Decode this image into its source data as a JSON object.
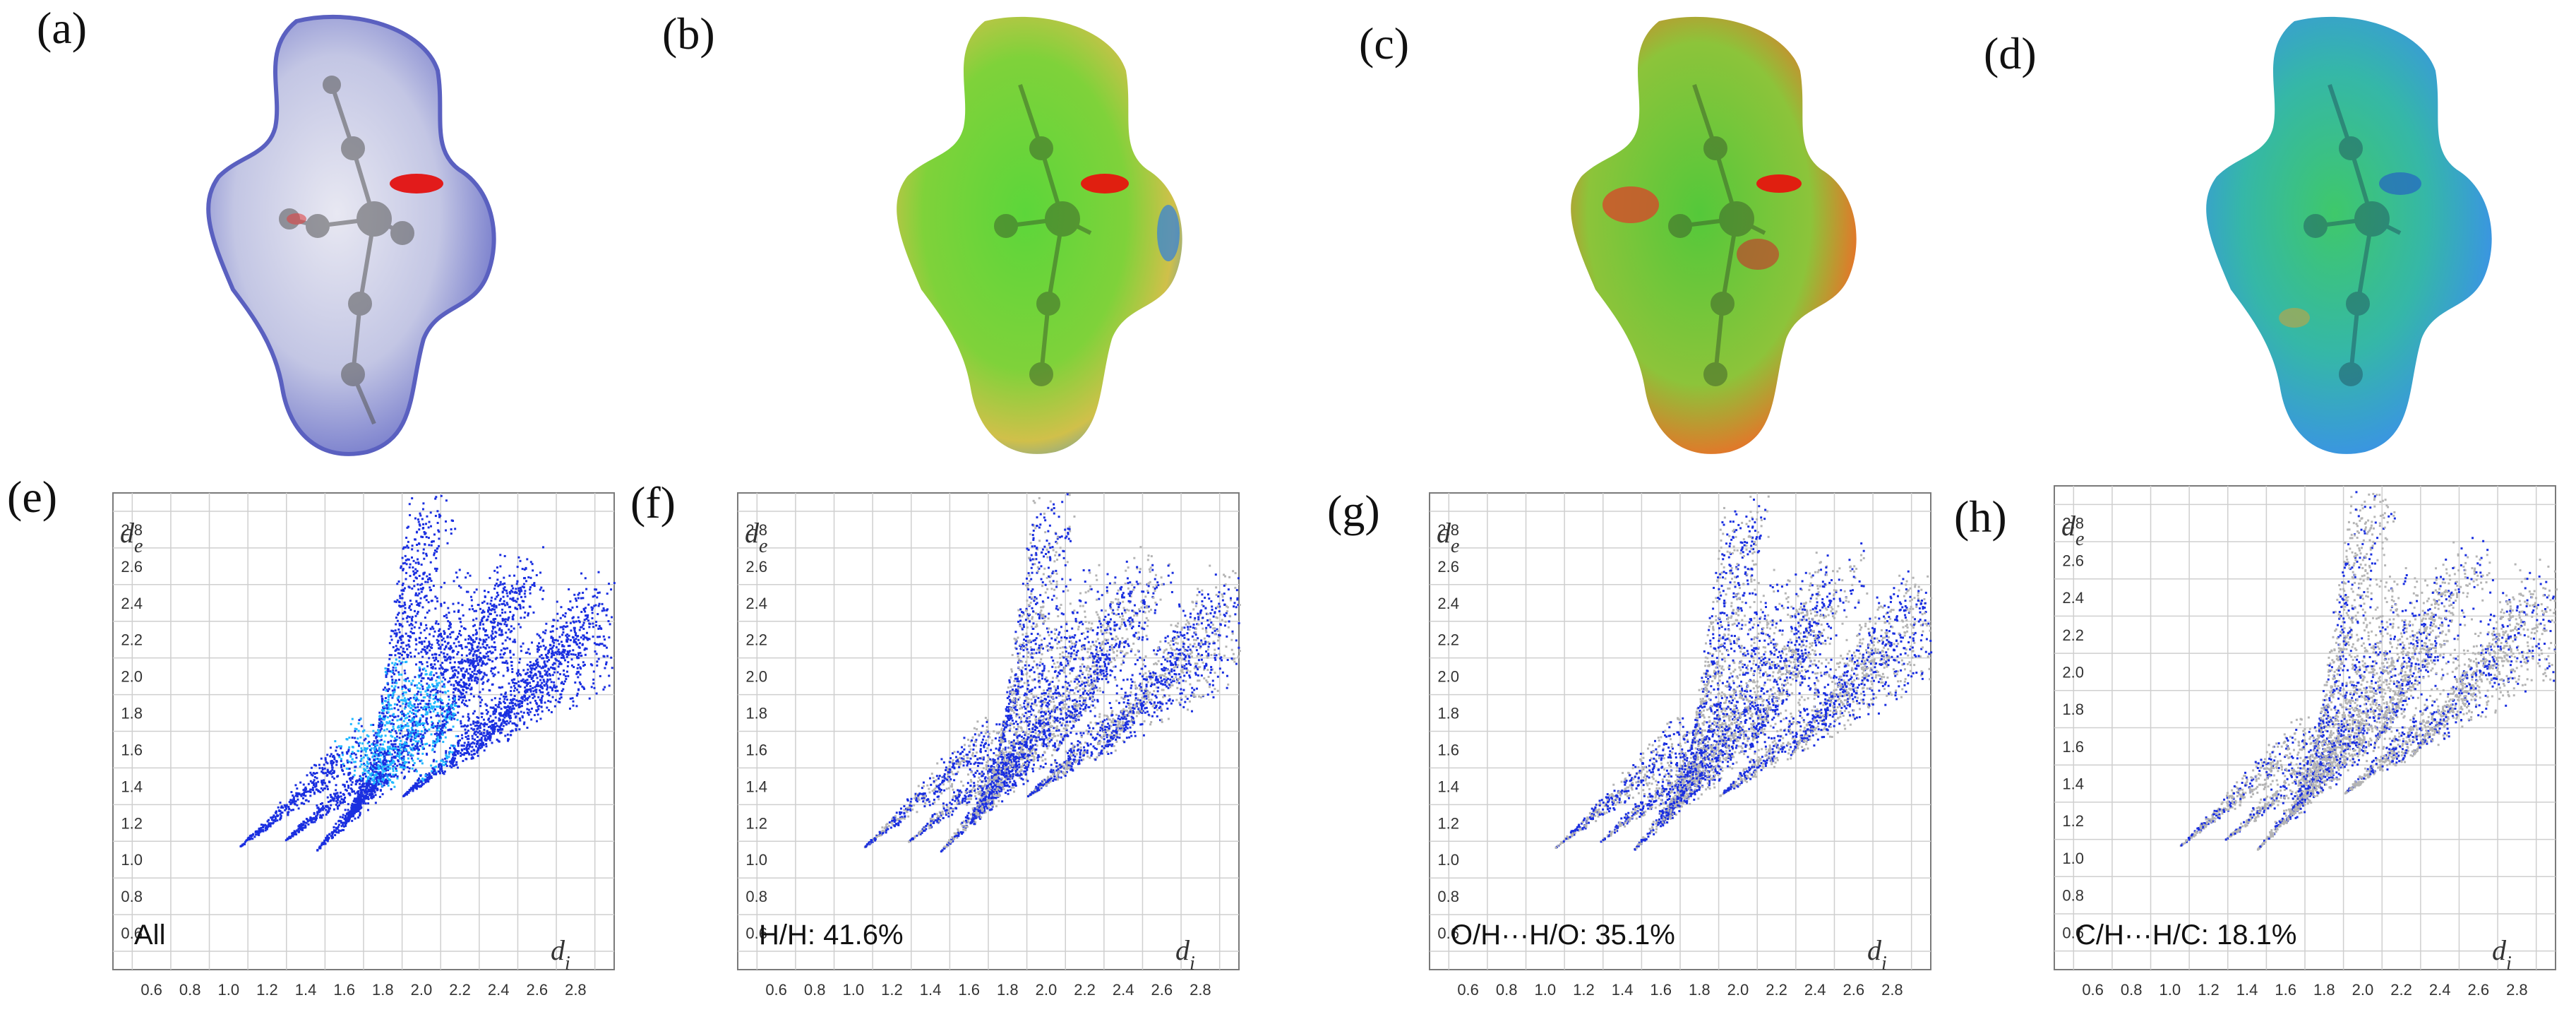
{
  "surfaces": [
    {
      "label": "(a)",
      "colormap": "dnorm"
    },
    {
      "label": "(b)",
      "colormap": "shape-index"
    },
    {
      "label": "(c)",
      "colormap": "curvedness"
    },
    {
      "label": "(d)",
      "colormap": "fragment-patch"
    }
  ],
  "chart_data": [
    {
      "type": "scatter",
      "label": "(e)",
      "legend": "All",
      "xlabel": "d",
      "xlabel_sub": "i",
      "ylabel": "d",
      "ylabel_sub": "e",
      "xlim": [
        0.4,
        3.0
      ],
      "ylim": [
        0.4,
        3.0
      ],
      "xticks": [
        "0.6",
        "0.8",
        "1.0",
        "1.2",
        "1.4",
        "1.6",
        "1.8",
        "2.0",
        "2.2",
        "2.4",
        "2.6",
        "2.8"
      ],
      "yticks": [
        "0.6",
        "0.8",
        "1.0",
        "1.2",
        "1.4",
        "1.6",
        "1.8",
        "2.0",
        "2.2",
        "2.4",
        "2.6",
        "2.8"
      ],
      "highlight_fraction": 1.0
    },
    {
      "type": "scatter",
      "label": "(f)",
      "legend": "H/H: 41.6%",
      "xlabel": "d",
      "xlabel_sub": "i",
      "ylabel": "d",
      "ylabel_sub": "e",
      "xlim": [
        0.4,
        3.0
      ],
      "ylim": [
        0.4,
        3.0
      ],
      "xticks": [
        "0.6",
        "0.8",
        "1.0",
        "1.2",
        "1.4",
        "1.6",
        "1.8",
        "2.0",
        "2.2",
        "2.4",
        "2.6",
        "2.8"
      ],
      "yticks": [
        "0.6",
        "0.8",
        "1.0",
        "1.2",
        "1.4",
        "1.6",
        "1.8",
        "2.0",
        "2.2",
        "2.4",
        "2.6",
        "2.8"
      ],
      "highlight_fraction": 0.416
    },
    {
      "type": "scatter",
      "label": "(g)",
      "legend": "O/H···H/O: 35.1%",
      "xlabel": "d",
      "xlabel_sub": "i",
      "ylabel": "d",
      "ylabel_sub": "e",
      "xlim": [
        0.4,
        3.0
      ],
      "ylim": [
        0.4,
        3.0
      ],
      "xticks": [
        "0.6",
        "0.8",
        "1.0",
        "1.2",
        "1.4",
        "1.6",
        "1.8",
        "2.0",
        "2.2",
        "2.4",
        "2.6",
        "2.8"
      ],
      "yticks": [
        "0.6",
        "0.8",
        "1.0",
        "1.2",
        "1.4",
        "1.6",
        "1.8",
        "2.0",
        "2.2",
        "2.4",
        "2.6",
        "2.8"
      ],
      "highlight_fraction": 0.351
    },
    {
      "type": "scatter",
      "label": "(h)",
      "legend": "C/H···H/C: 18.1%",
      "xlabel": "d",
      "xlabel_sub": "i",
      "ylabel": "d",
      "ylabel_sub": "e",
      "xlim": [
        0.4,
        3.0
      ],
      "ylim": [
        0.4,
        3.0
      ],
      "xticks": [
        "0.6",
        "0.8",
        "1.0",
        "1.2",
        "1.4",
        "1.6",
        "1.8",
        "2.0",
        "2.2",
        "2.4",
        "2.6",
        "2.8"
      ],
      "yticks": [
        "0.6",
        "0.8",
        "1.0",
        "1.2",
        "1.4",
        "1.6",
        "1.8",
        "2.0",
        "2.2",
        "2.4",
        "2.6",
        "2.8"
      ],
      "highlight_fraction": 0.181
    }
  ],
  "colors": {
    "highlight": "#1a2fe0",
    "highlight_core": "#22b8ff",
    "background_points": "#b4b4b4",
    "grid": "#cfcfcf",
    "frame": "#7a7a7a"
  }
}
